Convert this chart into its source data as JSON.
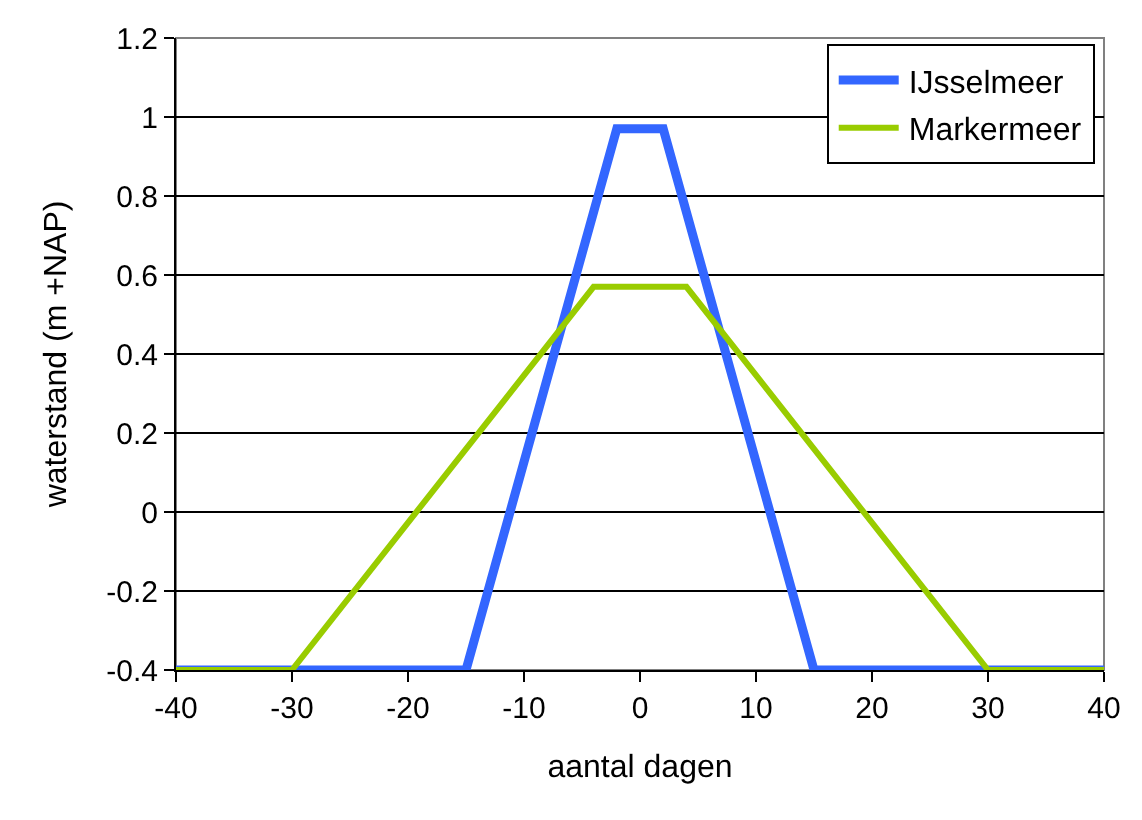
{
  "chart_data": {
    "type": "line",
    "xlabel": "aantal dagen",
    "ylabel": "waterstand (m +NAP)",
    "xlim": [
      -40,
      40
    ],
    "xticks": [
      -40,
      -30,
      -20,
      -10,
      0,
      10,
      20,
      30,
      40
    ],
    "ylim": [
      -0.4,
      1.2
    ],
    "yticks": [
      -0.4,
      -0.2,
      0,
      0.2,
      0.4,
      0.6,
      0.8,
      1,
      1.2
    ],
    "grid": "y",
    "legend": "top right",
    "marker": "none",
    "line_style": "solid",
    "series": [
      {
        "name": "IJsselmeer",
        "color": "#3366ff",
        "x": [
          -40,
          -15,
          -2,
          2,
          15,
          40
        ],
        "values": [
          -0.4,
          -0.4,
          0.97,
          0.97,
          -0.4,
          -0.4
        ]
      },
      {
        "name": "Markermeer",
        "color": "#99cc00",
        "x": [
          -40,
          -30,
          -4,
          4,
          30,
          40
        ],
        "values": [
          -0.4,
          -0.4,
          0.57,
          0.57,
          -0.4,
          -0.4
        ]
      }
    ]
  }
}
